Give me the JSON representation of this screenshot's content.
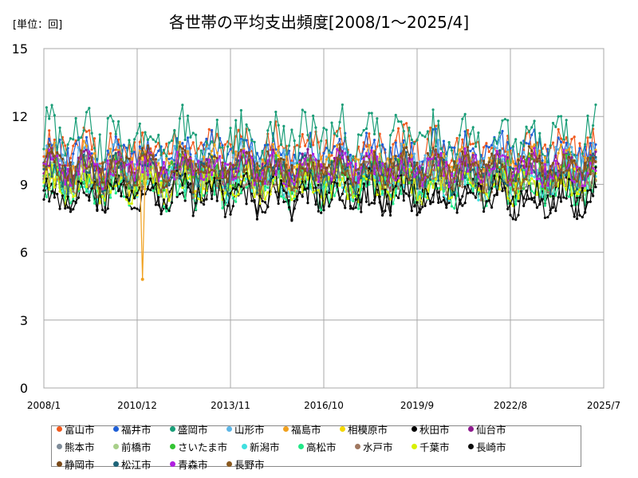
{
  "chart_data": {
    "type": "line",
    "title": "各世帯の平均支出頻度[2008/1～2025/4]",
    "unit_label": "[単位：回]",
    "x_ticks": [
      "2008/1",
      "2010/12",
      "2013/11",
      "2016/10",
      "2019/9",
      "2022/8",
      "2025/7"
    ],
    "x_range": [
      "2008/1",
      "2025/7"
    ],
    "y_ticks": [
      0,
      3,
      6,
      9,
      12,
      15
    ],
    "ylim": [
      0,
      15
    ],
    "grid": true,
    "legend_position": "bottom",
    "series": [
      {
        "name": "富山市",
        "color": "#f05a1e",
        "base": 10.6,
        "amp": 0.7,
        "values": []
      },
      {
        "name": "福井市",
        "color": "#1f5fd6",
        "base": 10.3,
        "amp": 0.7,
        "values": []
      },
      {
        "name": "盛岡市",
        "color": "#1a9e78",
        "base": 11.0,
        "amp": 1.0,
        "values": []
      },
      {
        "name": "山形市",
        "color": "#5cb6e6",
        "base": 10.0,
        "amp": 0.6,
        "values": []
      },
      {
        "name": "福島市",
        "color": "#f0a01e",
        "base": 9.9,
        "amp": 0.6,
        "values": []
      },
      {
        "name": "相模原市",
        "color": "#f4d800",
        "base": 9.4,
        "amp": 0.6,
        "values": []
      },
      {
        "name": "秋田市",
        "color": "#000000",
        "base": 8.5,
        "amp": 0.7,
        "values": []
      },
      {
        "name": "仙台市",
        "color": "#8e1a8e",
        "base": 9.6,
        "amp": 0.6,
        "values": []
      },
      {
        "name": "熊本市",
        "color": "#7f8c99",
        "base": 9.3,
        "amp": 0.6,
        "values": []
      },
      {
        "name": "前橋市",
        "color": "#a8cf8a",
        "base": 9.2,
        "amp": 0.6,
        "values": []
      },
      {
        "name": "さいたま市",
        "color": "#33c433",
        "base": 9.4,
        "amp": 0.6,
        "values": []
      },
      {
        "name": "新潟市",
        "color": "#40e0e0",
        "base": 9.1,
        "amp": 0.6,
        "values": []
      },
      {
        "name": "高松市",
        "color": "#22e888",
        "base": 8.9,
        "amp": 0.7,
        "values": []
      },
      {
        "name": "水戸市",
        "color": "#a07860",
        "base": 9.2,
        "amp": 0.6,
        "values": []
      },
      {
        "name": "千葉市",
        "color": "#d8f000",
        "base": 9.0,
        "amp": 0.6,
        "values": []
      },
      {
        "name": "長崎市",
        "color": "#0a0a0a",
        "base": 8.6,
        "amp": 0.7,
        "values": []
      },
      {
        "name": "静岡市",
        "color": "#7a4a1a",
        "base": 9.8,
        "amp": 0.6,
        "values": []
      },
      {
        "name": "松江市",
        "color": "#1e6478",
        "base": 9.5,
        "amp": 0.6,
        "values": []
      },
      {
        "name": "青森市",
        "color": "#b020e0",
        "base": 9.7,
        "amp": 0.6,
        "values": []
      },
      {
        "name": "長野市",
        "color": "#8a5a20",
        "base": 9.6,
        "amp": 0.6,
        "values": []
      }
    ],
    "annotations": [
      {
        "series": "福島市",
        "x": "2011/2",
        "y": 4.8
      }
    ]
  }
}
